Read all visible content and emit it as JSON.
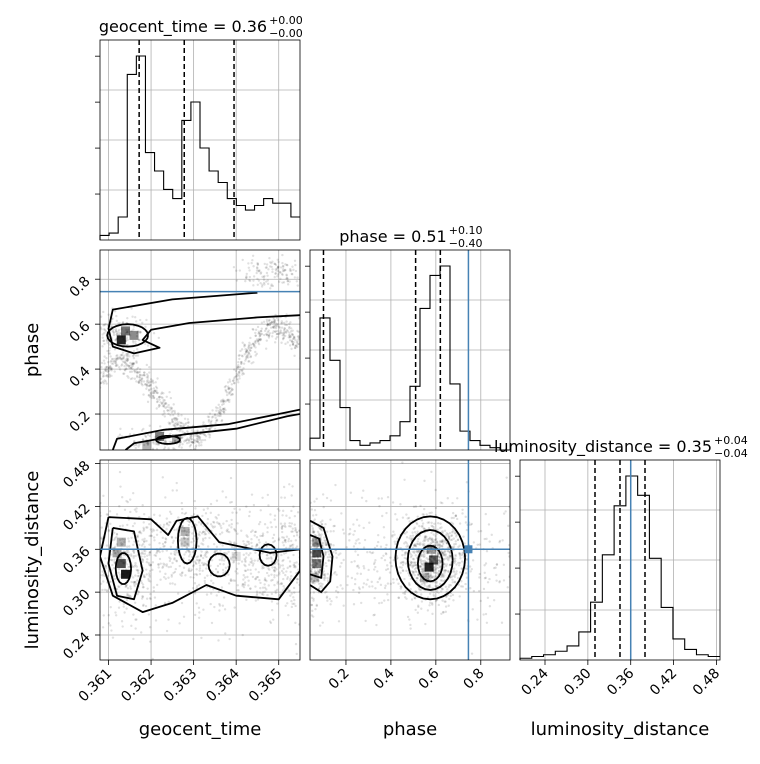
{
  "chart_data": {
    "type": "corner",
    "parameters": [
      "geocent_time",
      "phase",
      "luminosity_distance"
    ],
    "truths": {
      "phase": 0.745,
      "luminosity_distance": 0.36
    },
    "titles": [
      {
        "param": "geocent_time",
        "label": "geocent_time = 0.36",
        "plus": "+0.00",
        "minus": "−0.00"
      },
      {
        "param": "phase",
        "label": "phase = 0.51",
        "plus": "+0.10",
        "minus": "−0.40"
      },
      {
        "param": "luminosity_distance",
        "label": "luminosity_distance = 0.35",
        "plus": "+0.04",
        "minus": "−0.04"
      }
    ],
    "axes": {
      "geocent_time": {
        "range": [
          0.3608,
          0.3655
        ],
        "ticks": [
          "0.361",
          "0.362",
          "0.363",
          "0.364",
          "0.365"
        ],
        "tick_values": [
          0.361,
          0.362,
          0.363,
          0.364,
          0.365
        ]
      },
      "phase": {
        "range": [
          0.04,
          0.93
        ],
        "ticks": [
          "0.2",
          "0.4",
          "0.6",
          "0.8"
        ],
        "tick_values": [
          0.2,
          0.4,
          0.6,
          0.8
        ]
      },
      "luminosity_distance": {
        "range": [
          0.205,
          0.485
        ],
        "ticks": [
          "0.24",
          "0.30",
          "0.36",
          "0.42",
          "0.48"
        ],
        "tick_values": [
          0.24,
          0.3,
          0.36,
          0.42,
          0.48
        ]
      }
    },
    "histograms": [
      {
        "param": "geocent_time",
        "x0": 0.3608,
        "x1": 0.3655,
        "counts": [
          2,
          3,
          10,
          72,
          80,
          38,
          30,
          22,
          18,
          52,
          60,
          40,
          30,
          25,
          18,
          15,
          13,
          15,
          18,
          16,
          16,
          10
        ],
        "quantiles": [
          0.36172,
          0.36278,
          0.36395
        ]
      },
      {
        "param": "phase",
        "x0": 0.04,
        "x1": 0.93,
        "counts": [
          5,
          56,
          38,
          18,
          4,
          2,
          3,
          4,
          6,
          12,
          27,
          60,
          74,
          78,
          28,
          8,
          4,
          2,
          1,
          0
        ],
        "quantiles": [
          0.1,
          0.51,
          0.62
        ],
        "truth": 0.745
      },
      {
        "param": "luminosity_distance",
        "x0": 0.205,
        "x1": 0.485,
        "counts": [
          1,
          2,
          3,
          5,
          8,
          16,
          33,
          60,
          88,
          105,
          94,
          58,
          30,
          12,
          6,
          3,
          2
        ],
        "quantiles": [
          0.31,
          0.345,
          0.38
        ],
        "truth": 0.36
      }
    ],
    "panels_2d": [
      {
        "x": "geocent_time",
        "y": "phase"
      },
      {
        "x": "geocent_time",
        "y": "luminosity_distance"
      },
      {
        "x": "phase",
        "y": "luminosity_distance"
      }
    ]
  }
}
